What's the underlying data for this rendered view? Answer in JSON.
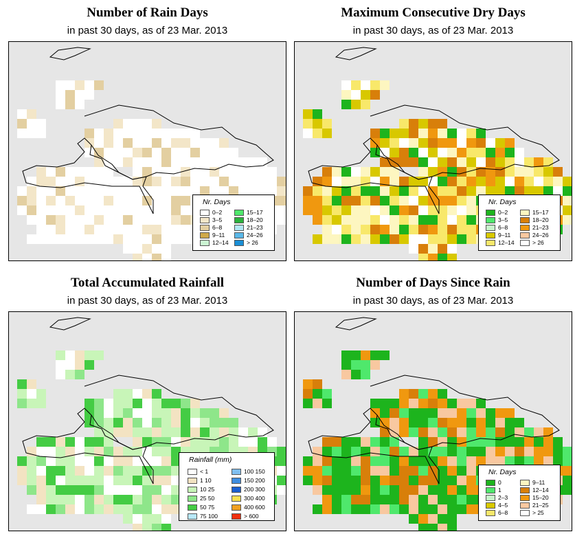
{
  "panels": [
    {
      "title": "Number of Rain Days",
      "subtitle": "in past 30 days, as of  23 Mar. 2013",
      "legend_title": "Nr. Days",
      "legend_items": [
        {
          "label": "0–2",
          "color": "#ffffff"
        },
        {
          "label": "3–5",
          "color": "#f3e6c8"
        },
        {
          "label": "6–8",
          "color": "#e3cfa1"
        },
        {
          "label": "9–11",
          "color": "#cfa94a"
        },
        {
          "label": "12–14",
          "color": "#ccf5d3"
        },
        {
          "label": "15–17",
          "color": "#4fe86c"
        },
        {
          "label": "18–20",
          "color": "#2bb23d"
        },
        {
          "label": "21–23",
          "color": "#b2e8f5"
        },
        {
          "label": "24–26",
          "color": "#5ab8e8"
        },
        {
          "label": "> 26",
          "color": "#1a8fd6"
        }
      ]
    },
    {
      "title": "Maximum Consecutive Dry Days",
      "subtitle": "in past 30 days, as of  23 Mar. 2013",
      "legend_title": "Nr. Days",
      "legend_items": [
        {
          "label": "0–2",
          "color": "#1db41d"
        },
        {
          "label": "3–5",
          "color": "#4fe86c"
        },
        {
          "label": "6–8",
          "color": "#c8f5cc"
        },
        {
          "label": "9–11",
          "color": "#d8c800"
        },
        {
          "label": "12–14",
          "color": "#f8e86a"
        },
        {
          "label": "15–17",
          "color": "#fdf6c0"
        },
        {
          "label": "18–20",
          "color": "#d87f0a"
        },
        {
          "label": "21–23",
          "color": "#f0980f"
        },
        {
          "label": "24–26",
          "color": "#f8c8a0"
        },
        {
          "label": "> 26",
          "color": "#ffffff"
        }
      ]
    },
    {
      "title": "Total Accumulated Rainfall",
      "subtitle": "in past 30 days, as of  23 Mar. 2013",
      "legend_title": "Rainfall (mm)",
      "legend_items": [
        {
          "label": "< 1",
          "color": "#ffffff"
        },
        {
          "label": "1    10",
          "color": "#f3e3c2"
        },
        {
          "label": "10    25",
          "color": "#c8f5b8"
        },
        {
          "label": "25    50",
          "color": "#8ee68a"
        },
        {
          "label": "50    75",
          "color": "#44cc44"
        },
        {
          "label": "75  100",
          "color": "#b8e8f8"
        },
        {
          "label": "100  150",
          "color": "#80bff0"
        },
        {
          "label": "150  200",
          "color": "#3f8ee0"
        },
        {
          "label": "200  300",
          "color": "#1a5fd0"
        },
        {
          "label": "300  400",
          "color": "#f8e050"
        },
        {
          "label": "400  600",
          "color": "#f0a020"
        },
        {
          "label": "> 600",
          "color": "#f03010"
        }
      ]
    },
    {
      "title": "Number of Days Since Rain",
      "subtitle": "in past 30 days, as of  23 Mar. 2013",
      "legend_title": "Nr. Days",
      "legend_items": [
        {
          "label": "0",
          "color": "#1db41d"
        },
        {
          "label": "1",
          "color": "#4fe86c"
        },
        {
          "label": "2–3",
          "color": "#c8f5cc"
        },
        {
          "label": "4–5",
          "color": "#d8c800"
        },
        {
          "label": "6–8",
          "color": "#f8e86a"
        },
        {
          "label": "9–11",
          "color": "#fdf6c0"
        },
        {
          "label": "12–14",
          "color": "#d87f0a"
        },
        {
          "label": "15–20",
          "color": "#f0980f"
        },
        {
          "label": "21–25",
          "color": "#f8c8a0"
        },
        {
          "label": "> 25",
          "color": "#ffffff"
        }
      ]
    }
  ]
}
